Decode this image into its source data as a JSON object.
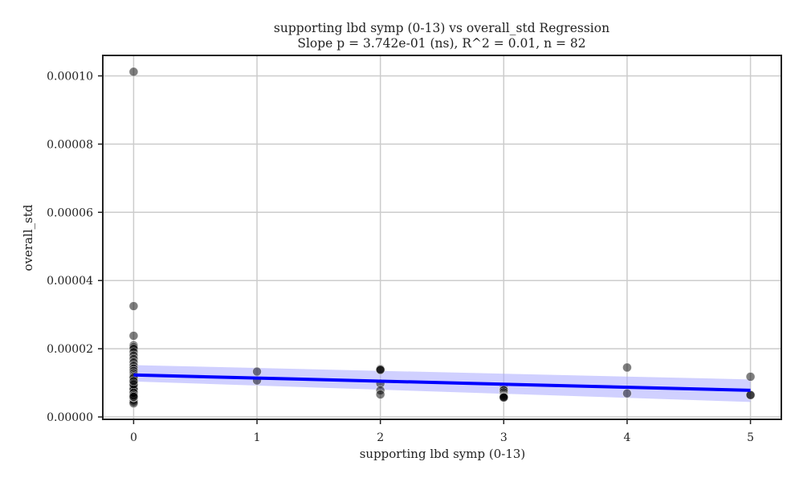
{
  "chart_data": {
    "type": "scatter",
    "title": "supporting lbd symp (0-13) vs overall_std Regression",
    "subtitle": "Slope p = 3.742e-01 (ns), R^2 = 0.01, n = 82",
    "xlabel": "supporting lbd symp (0-13)",
    "ylabel": "overall_std",
    "xlim": [
      -0.25,
      5.25
    ],
    "ylim": [
      -7e-07,
      0.000106
    ],
    "x_ticks": [
      0,
      1,
      2,
      3,
      4,
      5
    ],
    "x_tick_labels": [
      "0",
      "1",
      "2",
      "3",
      "4",
      "5"
    ],
    "y_ticks": [
      0,
      2e-05,
      4e-05,
      6e-05,
      8e-05,
      0.0001
    ],
    "y_tick_labels": [
      "0.00000",
      "0.00002",
      "0.00004",
      "0.00006",
      "0.00008",
      "0.00010"
    ],
    "grid": true,
    "colors": {
      "points": "#000000",
      "regression_line": "#0000ff",
      "confidence_band": "#aaaaff",
      "grid": "#cccccc"
    },
    "points": [
      [
        0,
        0.0001012
      ],
      [
        0,
        3.25e-05
      ],
      [
        0,
        2.38e-05
      ],
      [
        0,
        2.1e-05
      ],
      [
        0,
        2.05e-05
      ],
      [
        0,
        2e-05
      ],
      [
        0,
        1.9e-05
      ],
      [
        0,
        1.8e-05
      ],
      [
        0,
        1.7e-05
      ],
      [
        0,
        1.6e-05
      ],
      [
        0,
        1.5e-05
      ],
      [
        0,
        1.42e-05
      ],
      [
        0,
        1.35e-05
      ],
      [
        0,
        1.28e-05
      ],
      [
        0,
        1.22e-05
      ],
      [
        0,
        1.18e-05
      ],
      [
        0,
        1.12e-05
      ],
      [
        0,
        1.08e-05
      ],
      [
        0,
        1.04e-05
      ],
      [
        0,
        1e-05
      ],
      [
        0,
        9.6e-06
      ],
      [
        0,
        9.2e-06
      ],
      [
        0,
        8.8e-06
      ],
      [
        0,
        8.5e-06
      ],
      [
        0,
        8.2e-06
      ],
      [
        0,
        8e-06
      ],
      [
        0,
        7.8e-06
      ],
      [
        0,
        7.5e-06
      ],
      [
        0,
        7.2e-06
      ],
      [
        0,
        7e-06
      ],
      [
        0,
        6.8e-06
      ],
      [
        0,
        6.5e-06
      ],
      [
        0,
        6.2e-06
      ],
      [
        0,
        6e-06
      ],
      [
        0,
        5.8e-06
      ],
      [
        0,
        5.5e-06
      ],
      [
        0,
        5.2e-06
      ],
      [
        0,
        5e-06
      ],
      [
        0,
        4.5e-06
      ],
      [
        0,
        4e-06
      ],
      [
        0,
        1.15e-05
      ],
      [
        0,
        9.8e-06
      ],
      [
        0,
        8.7e-06
      ],
      [
        0,
        8.3e-06
      ],
      [
        0,
        7.9e-06
      ],
      [
        0,
        7.4e-06
      ],
      [
        0,
        6.9e-06
      ],
      [
        0,
        6.4e-06
      ],
      [
        0,
        6.1e-06
      ],
      [
        0,
        5.7e-06
      ],
      [
        0,
        9e-06
      ],
      [
        0,
        7.7e-06
      ],
      [
        0,
        6.7e-06
      ],
      [
        0,
        8.6e-06
      ],
      [
        0,
        8.1e-06
      ],
      [
        0,
        9.5e-06
      ],
      [
        0,
        7.1e-06
      ],
      [
        0,
        6.3e-06
      ],
      [
        0,
        5.9e-06
      ],
      [
        0,
        1.05e-05
      ],
      [
        1,
        1.33e-05
      ],
      [
        1,
        1.07e-05
      ],
      [
        2,
        1.41e-05
      ],
      [
        2,
        1.39e-05
      ],
      [
        2,
        1.38e-05
      ],
      [
        2,
        9.8e-06
      ],
      [
        2,
        7.8e-06
      ],
      [
        2,
        6.6e-06
      ],
      [
        3,
        8.5e-06
      ],
      [
        3,
        8e-06
      ],
      [
        3,
        7.8e-06
      ],
      [
        3,
        7.2e-06
      ],
      [
        3,
        6.6e-06
      ],
      [
        3,
        6.2e-06
      ],
      [
        3,
        6e-06
      ],
      [
        3,
        5.8e-06
      ],
      [
        3,
        5.7e-06
      ],
      [
        4,
        1.45e-05
      ],
      [
        4,
        6.9e-06
      ],
      [
        5,
        1.18e-05
      ],
      [
        5,
        6.5e-06
      ],
      [
        5,
        6.4e-06
      ]
    ],
    "regression": {
      "x": [
        0,
        5
      ],
      "y": [
        1.23e-05,
        7.8e-06
      ],
      "ci_lower": [
        1.04e-05,
        4.4e-06
      ],
      "ci_upper": [
        1.52e-05,
        1.1e-05
      ]
    }
  }
}
